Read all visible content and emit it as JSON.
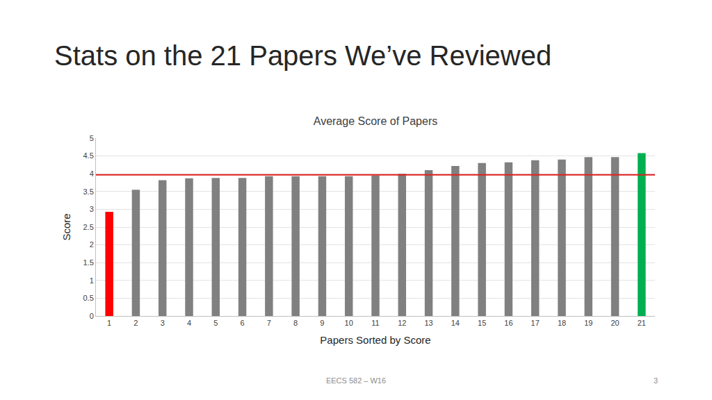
{
  "slide": {
    "title": "Stats on the 21 Papers We’ve Reviewed",
    "footer": "EECS 582 – W16",
    "page": "3"
  },
  "chart_data": {
    "type": "bar",
    "title": "Average Score of Papers",
    "x_label": "Papers Sorted by Score",
    "y_label": "Score",
    "categories": [
      "1",
      "2",
      "3",
      "4",
      "5",
      "6",
      "7",
      "8",
      "9",
      "10",
      "11",
      "12",
      "13",
      "14",
      "15",
      "16",
      "17",
      "18",
      "19",
      "20",
      "21"
    ],
    "values": [
      2.93,
      3.55,
      3.82,
      3.87,
      3.88,
      3.88,
      3.93,
      3.93,
      3.93,
      3.93,
      3.95,
      4.0,
      4.1,
      4.22,
      4.3,
      4.32,
      4.38,
      4.4,
      4.47,
      4.47,
      4.58
    ],
    "colors": [
      "#ff0000",
      "#808080",
      "#808080",
      "#808080",
      "#808080",
      "#808080",
      "#808080",
      "#808080",
      "#808080",
      "#808080",
      "#808080",
      "#808080",
      "#808080",
      "#808080",
      "#808080",
      "#808080",
      "#808080",
      "#808080",
      "#808080",
      "#808080",
      "#00b050"
    ],
    "average_line": {
      "value": 3.97,
      "color": "#e02020"
    },
    "ylim": [
      0,
      5
    ],
    "yticks": [
      0,
      0.5,
      1,
      1.5,
      2,
      2.5,
      3,
      3.5,
      4,
      4.5,
      5
    ],
    "grid": true
  }
}
